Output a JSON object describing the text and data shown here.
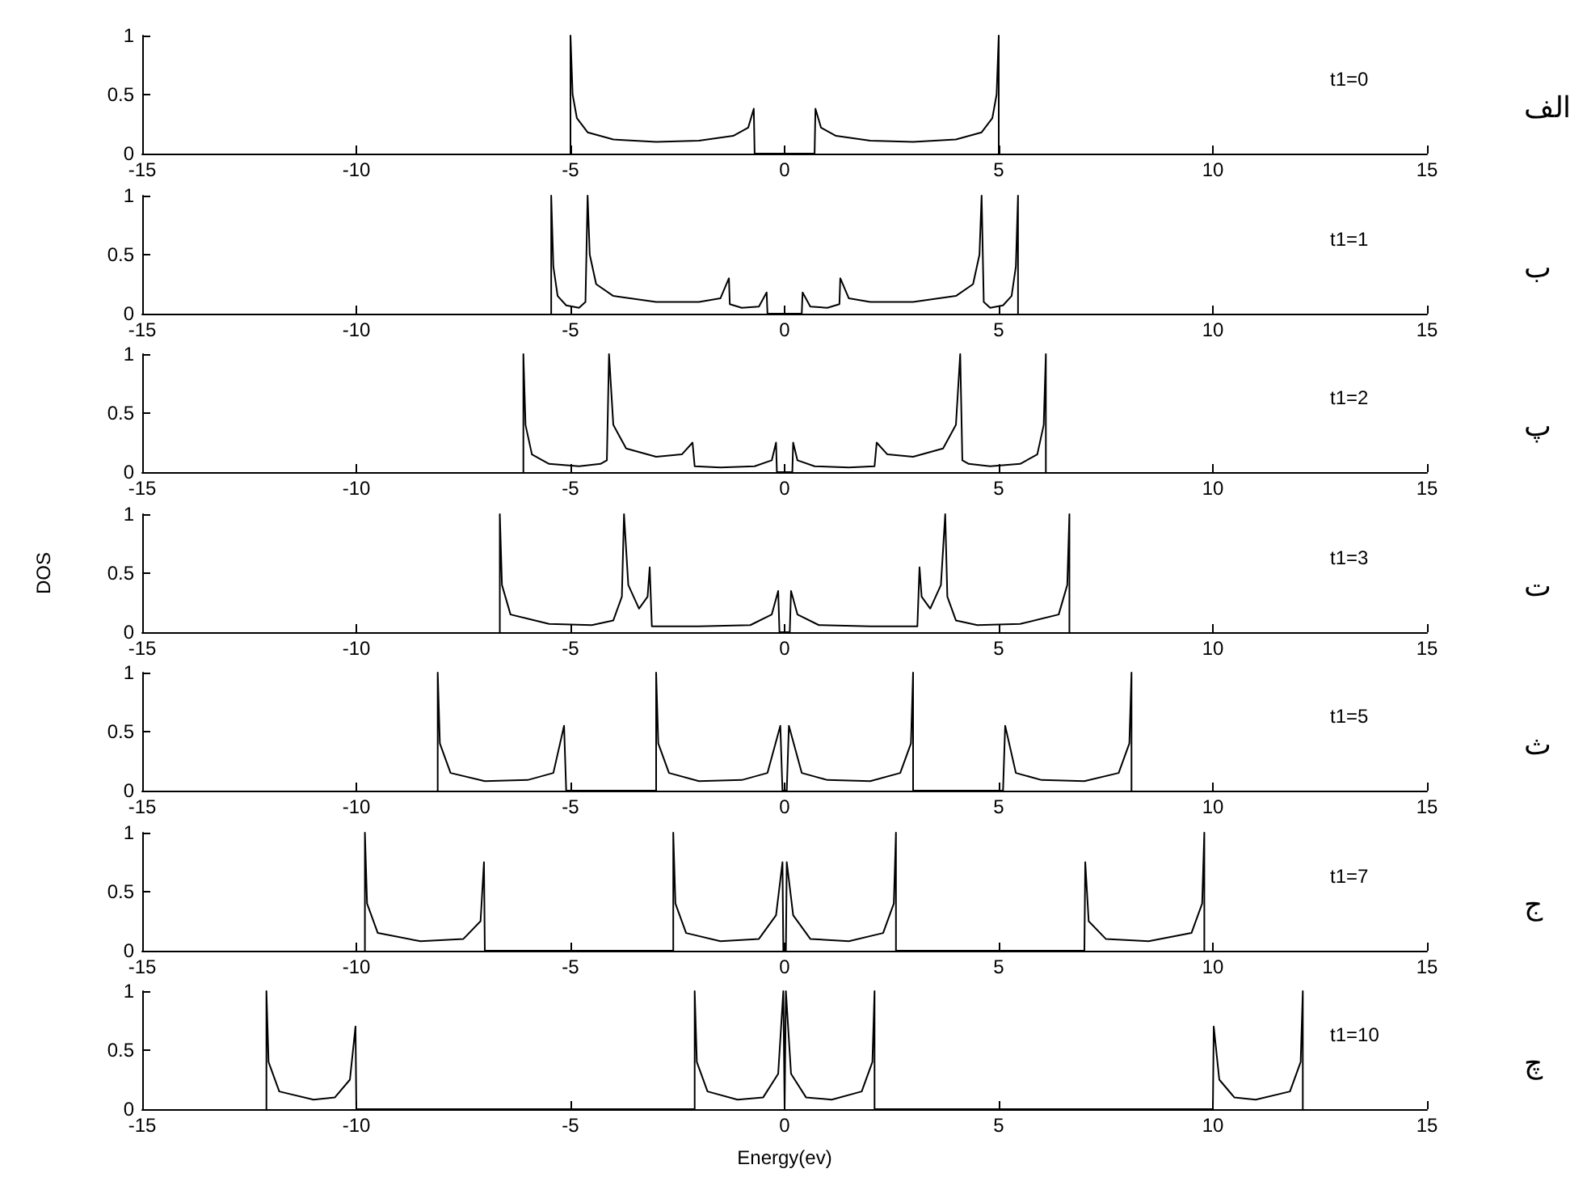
{
  "chart_data": [
    {
      "type": "line",
      "x": [
        -5,
        -5,
        -4.95,
        -4.85,
        -4.6,
        -4,
        -3,
        -2,
        -1.2,
        -0.85,
        -0.72,
        -0.7,
        0.7,
        0.72,
        0.85,
        1.2,
        2,
        3,
        4,
        4.6,
        4.85,
        4.95,
        5,
        5
      ],
      "values": [
        0,
        1,
        0.5,
        0.3,
        0.18,
        0.12,
        0.1,
        0.11,
        0.15,
        0.22,
        0.38,
        0,
        0,
        0.38,
        0.22,
        0.15,
        0.11,
        0.1,
        0.12,
        0.18,
        0.3,
        0.5,
        1,
        0
      ],
      "color": "#000000",
      "marker": "none",
      "xlim": [
        -15,
        15
      ],
      "xticks": [
        -15,
        -10,
        -5,
        0,
        5,
        10,
        15
      ],
      "ylim": [
        0,
        1
      ],
      "yticks": [
        0,
        0.5,
        1
      ],
      "annotations": [
        "t1=0",
        "الف"
      ]
    },
    {
      "type": "line",
      "x": [
        -5.45,
        -5.45,
        -5.4,
        -5.3,
        -5.1,
        -4.8,
        -4.65,
        -4.6,
        -4.55,
        -4.4,
        -4,
        -3,
        -2,
        -1.5,
        -1.3,
        -1.28,
        -1,
        -0.6,
        -0.42,
        -0.4,
        0.4,
        0.42,
        0.6,
        1,
        1.28,
        1.3,
        1.5,
        2,
        3,
        4,
        4.4,
        4.55,
        4.6,
        4.65,
        4.8,
        5.1,
        5.3,
        5.4,
        5.45,
        5.45
      ],
      "values": [
        0,
        1,
        0.4,
        0.15,
        0.07,
        0.05,
        0.1,
        1,
        0.5,
        0.25,
        0.15,
        0.1,
        0.1,
        0.13,
        0.3,
        0.08,
        0.05,
        0.06,
        0.18,
        0,
        0,
        0.18,
        0.06,
        0.05,
        0.08,
        0.3,
        0.13,
        0.1,
        0.1,
        0.15,
        0.25,
        0.5,
        1,
        0.1,
        0.05,
        0.07,
        0.15,
        0.4,
        1,
        0
      ],
      "color": "#000000",
      "marker": "none",
      "xlim": [
        -15,
        15
      ],
      "xticks": [
        -15,
        -10,
        -5,
        0,
        5,
        10,
        15
      ],
      "ylim": [
        0,
        1
      ],
      "yticks": [
        0,
        0.5,
        1
      ],
      "annotations": [
        "t1=1",
        "ب"
      ]
    },
    {
      "type": "line",
      "x": [
        -6.1,
        -6.1,
        -6.05,
        -5.9,
        -5.5,
        -4.8,
        -4.3,
        -4.15,
        -4.1,
        -4,
        -3.7,
        -3,
        -2.4,
        -2.15,
        -2.1,
        -1.5,
        -0.7,
        -0.3,
        -0.2,
        -0.18,
        0.18,
        0.2,
        0.3,
        0.7,
        1.5,
        2.1,
        2.15,
        2.4,
        3,
        3.7,
        4,
        4.1,
        4.15,
        4.3,
        4.8,
        5.5,
        5.9,
        6.05,
        6.1,
        6.1
      ],
      "values": [
        0,
        1,
        0.4,
        0.15,
        0.07,
        0.05,
        0.07,
        0.1,
        1,
        0.4,
        0.2,
        0.13,
        0.15,
        0.25,
        0.05,
        0.04,
        0.05,
        0.1,
        0.25,
        0,
        0,
        0.25,
        0.1,
        0.05,
        0.04,
        0.05,
        0.25,
        0.15,
        0.13,
        0.2,
        0.4,
        1,
        0.1,
        0.07,
        0.05,
        0.07,
        0.15,
        0.4,
        1,
        0
      ],
      "color": "#000000",
      "marker": "none",
      "xlim": [
        -15,
        15
      ],
      "xticks": [
        -15,
        -10,
        -5,
        0,
        5,
        10,
        15
      ],
      "ylim": [
        0,
        1
      ],
      "yticks": [
        0,
        0.5,
        1
      ],
      "annotations": [
        "t1=2",
        "پ"
      ]
    },
    {
      "type": "line",
      "x": [
        -6.65,
        -6.65,
        -6.6,
        -6.4,
        -5.5,
        -4.5,
        -4,
        -3.8,
        -3.75,
        -3.65,
        -3.4,
        -3.2,
        -3.15,
        -3.1,
        -2,
        -0.8,
        -0.3,
        -0.15,
        -0.12,
        0.12,
        0.15,
        0.3,
        0.8,
        2,
        3.1,
        3.15,
        3.2,
        3.4,
        3.65,
        3.75,
        3.8,
        4,
        4.5,
        5.5,
        6.4,
        6.6,
        6.65,
        6.65
      ],
      "values": [
        0,
        1,
        0.4,
        0.15,
        0.07,
        0.06,
        0.1,
        0.3,
        1,
        0.4,
        0.2,
        0.3,
        0.55,
        0.05,
        0.05,
        0.06,
        0.15,
        0.35,
        0,
        0,
        0.35,
        0.15,
        0.06,
        0.05,
        0.05,
        0.55,
        0.3,
        0.2,
        0.4,
        1,
        0.3,
        0.1,
        0.06,
        0.07,
        0.15,
        0.4,
        1,
        0
      ],
      "color": "#000000",
      "marker": "none",
      "xlim": [
        -15,
        15
      ],
      "xticks": [
        -15,
        -10,
        -5,
        0,
        5,
        10,
        15
      ],
      "ylim": [
        0,
        1
      ],
      "yticks": [
        0,
        0.5,
        1
      ],
      "ylabel": "DOS",
      "annotations": [
        "t1=3",
        "ت"
      ]
    },
    {
      "type": "line",
      "x": [
        -8.1,
        -8.1,
        -8.05,
        -7.8,
        -7,
        -6,
        -5.4,
        -5.15,
        -5.1,
        -3,
        -3,
        -2.95,
        -2.7,
        -2,
        -1,
        -0.4,
        -0.1,
        -0.05,
        0.05,
        0.1,
        0.4,
        1,
        2,
        2.7,
        2.95,
        3,
        3,
        5.1,
        5.15,
        5.4,
        6,
        7,
        7.8,
        8.05,
        8.1,
        8.1
      ],
      "values": [
        0,
        1,
        0.4,
        0.15,
        0.08,
        0.09,
        0.15,
        0.55,
        0,
        0,
        1,
        0.4,
        0.15,
        0.08,
        0.09,
        0.15,
        0.55,
        0,
        0,
        0.55,
        0.15,
        0.09,
        0.08,
        0.15,
        0.4,
        1,
        0,
        0,
        0.55,
        0.15,
        0.09,
        0.08,
        0.15,
        0.4,
        1,
        0
      ],
      "color": "#000000",
      "marker": "none",
      "xlim": [
        -15,
        15
      ],
      "xticks": [
        -15,
        -10,
        -5,
        0,
        5,
        10,
        15
      ],
      "ylim": [
        0,
        1
      ],
      "yticks": [
        0,
        0.5,
        1
      ],
      "annotations": [
        "t1=5",
        "ث"
      ]
    },
    {
      "type": "line",
      "x": [
        -9.8,
        -9.8,
        -9.75,
        -9.5,
        -8.5,
        -7.5,
        -7.1,
        -7.02,
        -7,
        -2.6,
        -2.6,
        -2.55,
        -2.3,
        -1.5,
        -0.6,
        -0.2,
        -0.05,
        -0.03,
        0.03,
        0.05,
        0.2,
        0.6,
        1.5,
        2.3,
        2.55,
        2.6,
        2.6,
        7,
        7.02,
        7.1,
        7.5,
        8.5,
        9.5,
        9.75,
        9.8,
        9.8
      ],
      "values": [
        0,
        1,
        0.4,
        0.15,
        0.08,
        0.1,
        0.25,
        0.75,
        0,
        0,
        1,
        0.4,
        0.15,
        0.08,
        0.1,
        0.3,
        0.75,
        0,
        0,
        0.75,
        0.3,
        0.1,
        0.08,
        0.15,
        0.4,
        1,
        0,
        0,
        0.75,
        0.25,
        0.1,
        0.08,
        0.15,
        0.4,
        1,
        0
      ],
      "color": "#000000",
      "marker": "none",
      "xlim": [
        -15,
        15
      ],
      "xticks": [
        -15,
        -10,
        -5,
        0,
        5,
        10,
        15
      ],
      "ylim": [
        0,
        1
      ],
      "yticks": [
        0,
        0.5,
        1
      ],
      "annotations": [
        "t1=7",
        "ج"
      ]
    },
    {
      "type": "line",
      "x": [
        -12.1,
        -12.1,
        -12.05,
        -11.8,
        -11,
        -10.5,
        -10.15,
        -10.02,
        -10,
        -2.1,
        -2.1,
        -2.05,
        -1.8,
        -1.1,
        -0.5,
        -0.15,
        -0.03,
        0,
        0.03,
        0.15,
        0.5,
        1.1,
        1.8,
        2.05,
        2.1,
        2.1,
        10,
        10.02,
        10.15,
        10.5,
        11,
        11.8,
        12.05,
        12.1,
        12.1
      ],
      "values": [
        0,
        1,
        0.4,
        0.15,
        0.08,
        0.1,
        0.25,
        0.7,
        0,
        0,
        1,
        0.4,
        0.15,
        0.08,
        0.1,
        0.3,
        1,
        0,
        1,
        0.3,
        0.1,
        0.08,
        0.15,
        0.4,
        1,
        0,
        0,
        0.7,
        0.25,
        0.1,
        0.08,
        0.15,
        0.4,
        1,
        0
      ],
      "color": "#000000",
      "marker": "none",
      "xlim": [
        -15,
        15
      ],
      "xticks": [
        -15,
        -10,
        -5,
        0,
        5,
        10,
        15
      ],
      "ylim": [
        0,
        1
      ],
      "yticks": [
        0,
        0.5,
        1
      ],
      "xlabel": "Energy(ev)",
      "annotations": [
        "t1=10",
        "چ"
      ]
    }
  ]
}
